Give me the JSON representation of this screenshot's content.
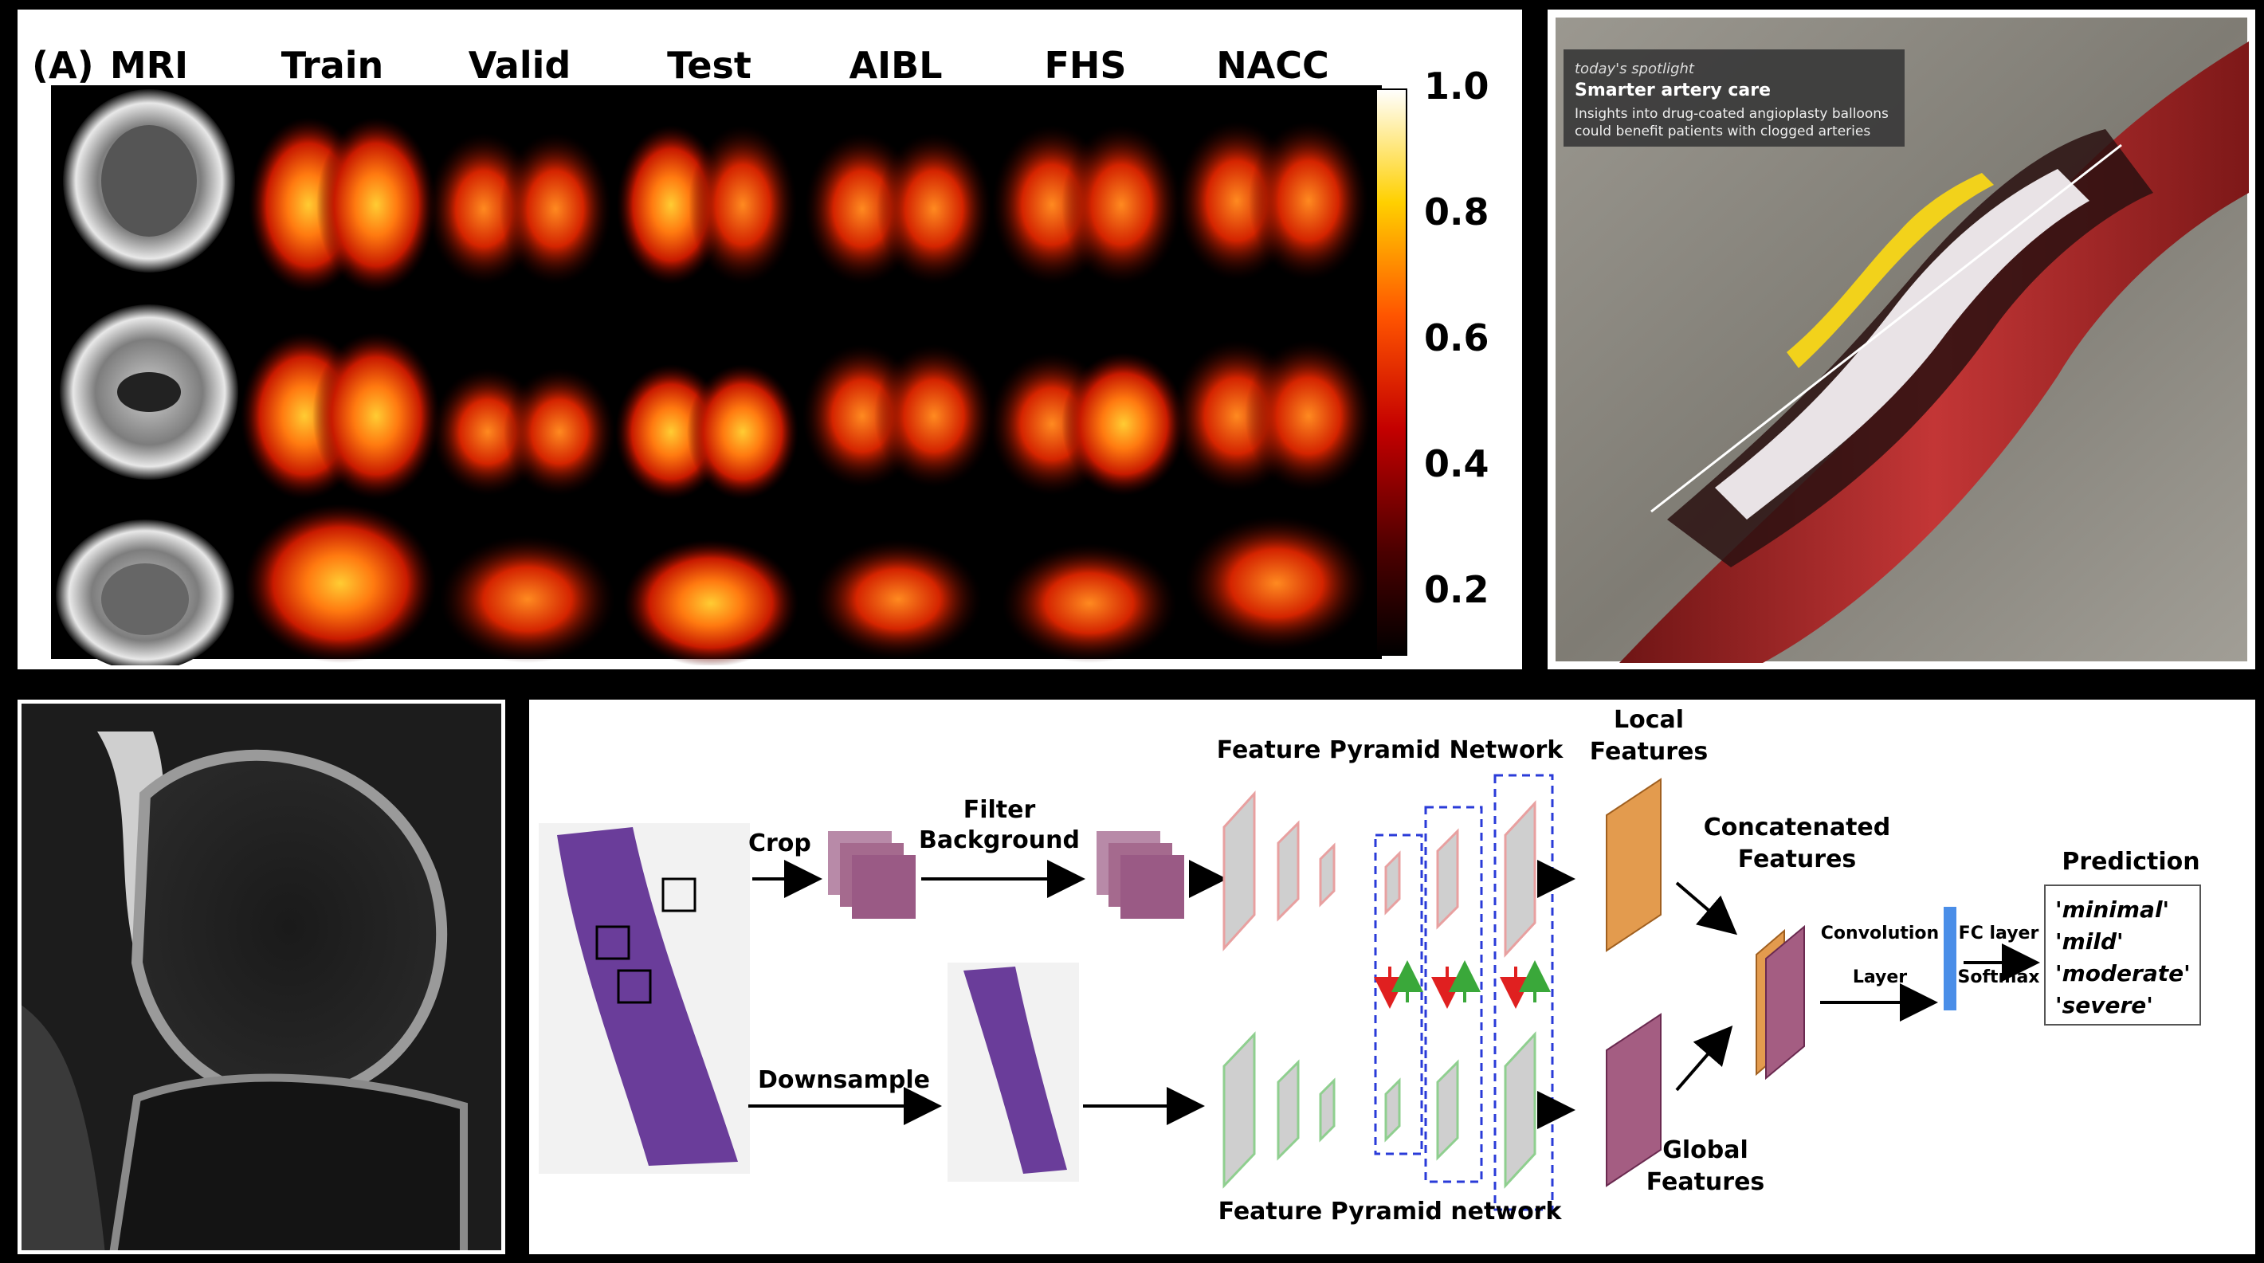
{
  "panel_a": {
    "label": "(A)",
    "columns": [
      "MRI",
      "Train",
      "Valid",
      "Test",
      "AIBL",
      "FHS",
      "NACC"
    ],
    "colorbar_ticks": [
      "1.0",
      "0.8",
      "0.6",
      "0.4",
      "0.2"
    ],
    "colorbar_values": [
      1.0,
      0.8,
      0.6,
      0.4,
      0.2
    ],
    "colormap_colors": [
      "#000000",
      "#3a0000",
      "#8b0000",
      "#d81000",
      "#ff6a00",
      "#ffb000",
      "#ffee00",
      "#ffffff"
    ]
  },
  "spotlight": {
    "kicker": "today's spotlight",
    "headline": "Smarter artery care",
    "body_line1": "Insights into drug-coated angioplasty balloons",
    "body_line2": "could benefit patients with clogged arteries",
    "colors": {
      "artery": "#b52a2a",
      "wall": "#8c8a84",
      "plaque": "#f2d21b"
    }
  },
  "pipeline": {
    "crop": "Crop",
    "filter_line1": "Filter",
    "filter_line2": "Background",
    "downsample": "Downsample",
    "fpn_top": "Feature Pyramid Network",
    "fpn_bottom": "Feature Pyramid network",
    "local_line1": "Local",
    "local_line2": "Features",
    "global_line1": "Global",
    "global_line2": "Features",
    "concat_line1": "Concatenated",
    "concat_line2": "Features",
    "conv_line1": "Convolution",
    "conv_line2": "Layer",
    "fc_line1": "FC layer",
    "fc_line2": "Softmax",
    "prediction_title": "Prediction",
    "classes": [
      "'minimal'",
      "'mild'",
      "'moderate'",
      "'severe'"
    ],
    "colors": {
      "local": "#e39b4e",
      "global": "#a45d82",
      "fpn_top": "#e8a0a0",
      "fpn_bottom": "#8fcf8f",
      "fc": "#4a8ee8",
      "tissue": "#6a3d9a"
    }
  }
}
